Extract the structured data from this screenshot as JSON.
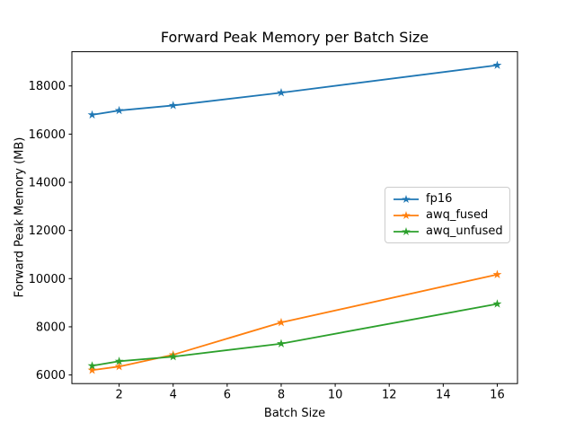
{
  "chart_data": {
    "type": "line",
    "title": "Forward Peak Memory per Batch Size",
    "xlabel": "Batch Size",
    "ylabel": "Forward Peak Memory (MB)",
    "x": [
      1,
      2,
      4,
      8,
      16
    ],
    "series": [
      {
        "name": "fp16",
        "color": "#1f77b4",
        "marker": "star",
        "values": [
          16800,
          16980,
          17190,
          17720,
          18860
        ]
      },
      {
        "name": "awq_fused",
        "color": "#ff7f0e",
        "marker": "star",
        "values": [
          6200,
          6350,
          6840,
          8180,
          10170
        ]
      },
      {
        "name": "awq_unfused",
        "color": "#2ca02c",
        "marker": "star",
        "values": [
          6380,
          6570,
          6760,
          7300,
          8950
        ]
      }
    ],
    "xticks": [
      2,
      4,
      6,
      8,
      10,
      12,
      14,
      16
    ],
    "yticks": [
      6000,
      8000,
      10000,
      12000,
      14000,
      16000,
      18000
    ],
    "xlim": [
      0.25,
      16.75
    ],
    "ylim": [
      5642,
      19421
    ],
    "grid": false,
    "legend_position": "right-center-inside",
    "background_color": "#ffffff",
    "axis_color": "#000000",
    "text_color": "#000000"
  }
}
